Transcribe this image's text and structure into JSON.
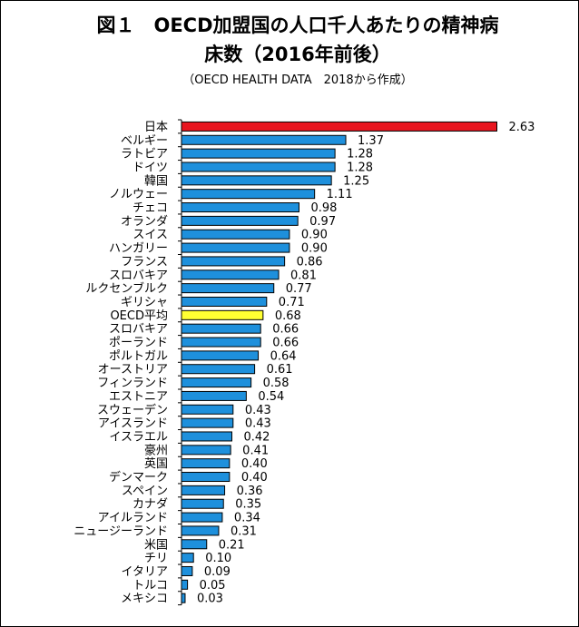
{
  "header": {
    "title_line1": "図１　OECD加盟国の人口千人あたりの精神病",
    "title_line2": "床数（2016年前後）",
    "subtitle": "（OECD HEALTH DATA　2018から作成）"
  },
  "chart_data": {
    "type": "bar",
    "orientation": "horizontal",
    "title": "図１　OECD加盟国の人口千人あたりの精神病床数（2016年前後）",
    "subtitle": "（OECD HEALTH DATA　2018から作成）",
    "xlim": [
      0,
      2.7
    ],
    "grid": false,
    "categories": [
      "日本",
      "ベルギー",
      "ラトビア",
      "ドイツ",
      "韓国",
      "ノルウェー",
      "チェコ",
      "オランダ",
      "スイス",
      "ハンガリー",
      "フランス",
      "スロバキア",
      "ルクセンブルク",
      "ギリシャ",
      "OECD平均",
      "スロバキア",
      "ポーランド",
      "ポルトガル",
      "オーストリア",
      "フィンランド",
      "エストニア",
      "スウェーデン",
      "アイスランド",
      "イスラエル",
      "豪州",
      "英国",
      "デンマーク",
      "スペイン",
      "カナダ",
      "アイルランド",
      "ニュージーランド",
      "米国",
      "チリ",
      "イタリア",
      "トルコ",
      "メキシコ"
    ],
    "values": [
      2.63,
      1.37,
      1.28,
      1.28,
      1.25,
      1.11,
      0.98,
      0.97,
      0.9,
      0.9,
      0.86,
      0.81,
      0.77,
      0.71,
      0.68,
      0.66,
      0.66,
      0.64,
      0.61,
      0.58,
      0.54,
      0.43,
      0.43,
      0.42,
      0.41,
      0.4,
      0.4,
      0.36,
      0.35,
      0.34,
      0.31,
      0.21,
      0.1,
      0.09,
      0.05,
      0.03
    ],
    "value_labels": [
      "2.63",
      "1.37",
      "1.28",
      "1.28",
      "1.25",
      "1.11",
      "0.98",
      "0.97",
      "0.90",
      "0.90",
      "0.86",
      "0.81",
      "0.77",
      "0.71",
      "0.68",
      "0.66",
      "0.66",
      "0.64",
      "0.61",
      "0.58",
      "0.54",
      "0.43",
      "0.43",
      "0.42",
      "0.41",
      "0.40",
      "0.40",
      "0.36",
      "0.35",
      "0.34",
      "0.31",
      "0.21",
      "0.10",
      "0.09",
      "0.05",
      "0.03"
    ],
    "colors": {
      "default": "#1E90DC",
      "highlight_japan": "#E8141E",
      "highlight_average": "#FFFF32",
      "bar_stroke": "#000000"
    },
    "bar_colors": [
      "highlight_japan",
      "default",
      "default",
      "default",
      "default",
      "default",
      "default",
      "default",
      "default",
      "default",
      "default",
      "default",
      "default",
      "default",
      "highlight_average",
      "default",
      "default",
      "default",
      "default",
      "default",
      "default",
      "default",
      "default",
      "default",
      "default",
      "default",
      "default",
      "default",
      "default",
      "default",
      "default",
      "default",
      "default",
      "default",
      "default",
      "default"
    ]
  }
}
